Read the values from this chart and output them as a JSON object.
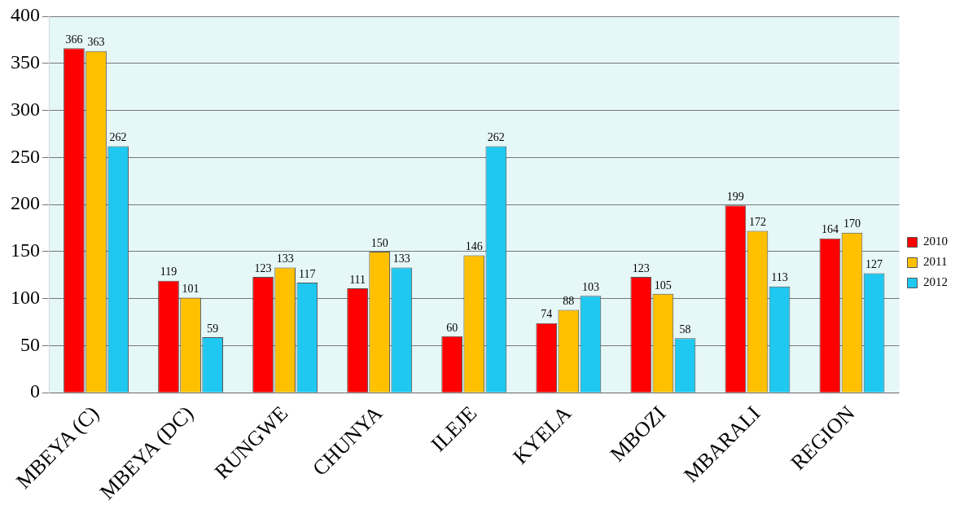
{
  "chart_data": {
    "type": "bar",
    "categories": [
      "MBEYA (C)",
      "MBEYA (DC)",
      "RUNGWE",
      "CHUNYA",
      "ILEJE",
      "KYELA",
      "MBOZI",
      "MBARALI",
      "REGION"
    ],
    "series": [
      {
        "name": "2010",
        "color": "#ff0000",
        "values": [
          366,
          119,
          123,
          111,
          60,
          74,
          123,
          199,
          164
        ]
      },
      {
        "name": "2011",
        "color": "#ffc000",
        "values": [
          363,
          101,
          133,
          150,
          146,
          88,
          105,
          172,
          170
        ]
      },
      {
        "name": "2012",
        "color": "#1ec8f0",
        "values": [
          262,
          59,
          117,
          133,
          262,
          103,
          58,
          113,
          127
        ]
      }
    ],
    "ylim": [
      0,
      400
    ],
    "yticks": [
      0,
      50,
      100,
      150,
      200,
      250,
      300,
      350,
      400
    ],
    "grid": "y",
    "legend": "right",
    "data_labels": true
  }
}
